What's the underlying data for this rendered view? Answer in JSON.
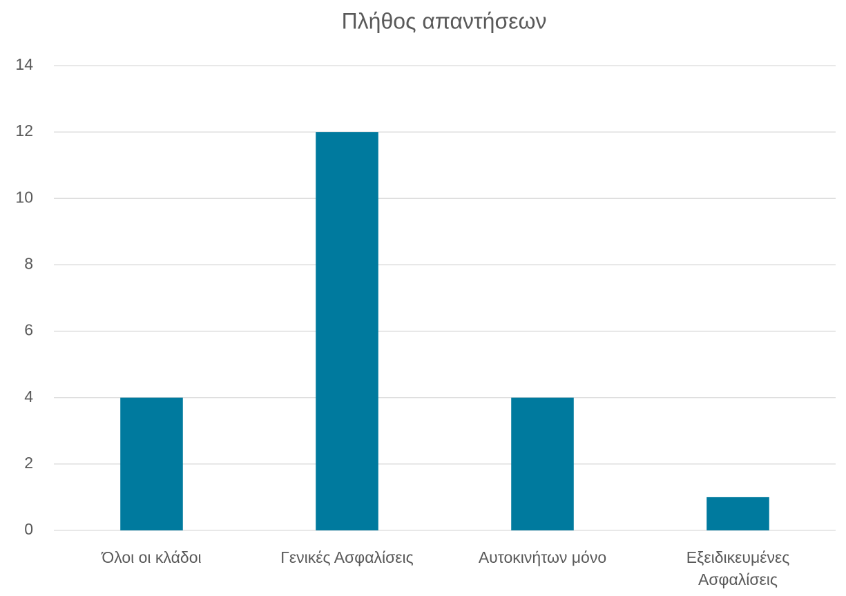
{
  "chart_data": {
    "type": "bar",
    "title": "Πλήθος απαντήσεων",
    "categories": [
      "Όλοι οι κλάδοι",
      "Γενικές Ασφαλίσεις",
      "Αυτοκινήτων μόνο",
      "Εξειδικευμένες Ασφαλίσεις"
    ],
    "values": [
      4,
      12,
      4,
      1
    ],
    "color": "#007a9e",
    "ylim": [
      0,
      14
    ],
    "yticks": [
      0,
      2,
      4,
      6,
      8,
      10,
      12,
      14
    ],
    "grid": true
  }
}
